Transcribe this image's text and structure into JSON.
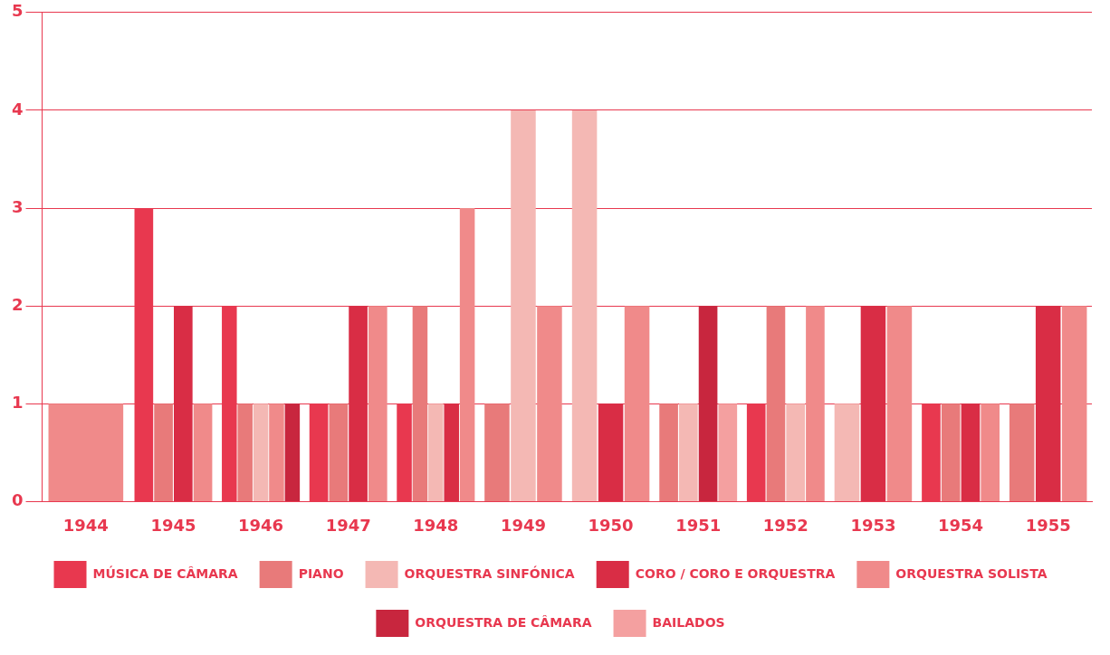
{
  "chart_data": {
    "type": "bar",
    "categories": [
      "1944",
      "1945",
      "1946",
      "1947",
      "1948",
      "1949",
      "1950",
      "1951",
      "1952",
      "1953",
      "1954",
      "1955"
    ],
    "series": [
      {
        "name": "MÚSICA DE CÂMARA",
        "color": "#e8384f",
        "values": [
          null,
          3,
          2,
          1,
          1,
          null,
          null,
          null,
          1,
          null,
          1,
          null
        ]
      },
      {
        "name": "PIANO",
        "color": "#e87a7a",
        "values": [
          null,
          1,
          1,
          1,
          2,
          1,
          null,
          1,
          2,
          null,
          1,
          1
        ]
      },
      {
        "name": "ORQUESTRA SINFÓNICA",
        "color": "#f4b8b4",
        "values": [
          null,
          null,
          1,
          null,
          1,
          4,
          4,
          1,
          1,
          1,
          null,
          null
        ]
      },
      {
        "name": "CORO / CORO E ORQUESTRA",
        "color": "#d92d45",
        "values": [
          null,
          2,
          null,
          2,
          1,
          null,
          1,
          null,
          null,
          2,
          1,
          2
        ]
      },
      {
        "name": "ORQUESTRA SOLISTA",
        "color": "#f08a8a",
        "values": [
          1,
          1,
          1,
          2,
          3,
          2,
          2,
          null,
          2,
          2,
          1,
          2
        ]
      },
      {
        "name": "ORQUESTRA DE CÂMARA",
        "color": "#c8263e",
        "values": [
          null,
          null,
          1,
          null,
          null,
          null,
          null,
          2,
          null,
          null,
          null,
          null
        ]
      },
      {
        "name": "BAILADOS",
        "color": "#f4a0a0",
        "values": [
          null,
          null,
          null,
          null,
          null,
          null,
          null,
          1,
          null,
          null,
          null,
          null
        ]
      }
    ],
    "ylim": [
      0,
      5
    ],
    "yticks": [
      0,
      1,
      2,
      3,
      4,
      5
    ],
    "grid": "y",
    "legend": "bottom"
  }
}
